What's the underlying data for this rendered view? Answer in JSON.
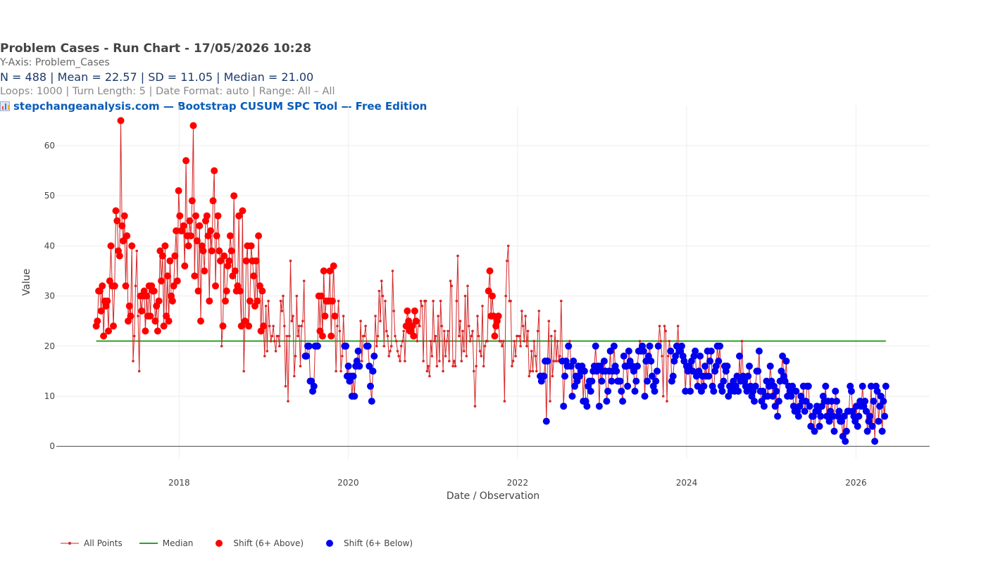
{
  "header": {
    "title": "Problem Cases - Run Chart - 17/05/2026 10:28",
    "yaxis_line": "Y-Axis: Problem_Cases",
    "stats_line": "N = 488  |  Mean = 22.57  |  SD = 11.05  |  Median = 21.00",
    "meta_line": "Loops: 1000  |  Turn Length: 5  |  Date Format: auto  |  Range: All – All",
    "link_text": "stepchangeanalysis.com — Bootstrap CUSUM SPC Tool — Free Edition",
    "link_icon": "bar-chart-icon"
  },
  "colors": {
    "line": "#d62728",
    "median": "#2ca02c",
    "shift_above": "#ff0000",
    "shift_below": "#0000ee"
  },
  "chart_data": {
    "type": "line",
    "xlabel": "Date / Observation",
    "ylabel": "Value",
    "xlim": [
      "2016-07-20",
      "2026-11-15"
    ],
    "ylim": [
      -2.5,
      68
    ],
    "x_ticks": [
      "2018",
      "2020",
      "2022",
      "2024",
      "2026"
    ],
    "y_ticks": [
      0,
      10,
      20,
      30,
      40,
      50,
      60
    ],
    "median": 21.0,
    "median_range": [
      "2017-01-08",
      "2026-05-10"
    ],
    "grid": true,
    "legend_position": "bottom-left",
    "legend": [
      "All Points",
      "Median",
      "Shift (6+ Above)",
      "Shift (6+ Below)"
    ],
    "series": [
      {
        "name": "All Points",
        "kind": "line+markers",
        "y": [
          24,
          25,
          31,
          31,
          27,
          32,
          22,
          29,
          28,
          29,
          23,
          33,
          40,
          32,
          24,
          32,
          47,
          45,
          39,
          38,
          65,
          44,
          41,
          46,
          32,
          42,
          25,
          28,
          26,
          40,
          17,
          22,
          32,
          39,
          26,
          15,
          30,
          27,
          30,
          31,
          23,
          30,
          26,
          32,
          26,
          32,
          31,
          31,
          25,
          28,
          23,
          29,
          39,
          33,
          38,
          24,
          40,
          26,
          34,
          25,
          37,
          30,
          29,
          32,
          38,
          43,
          33,
          51,
          46,
          43,
          43,
          44,
          36,
          57,
          42,
          40,
          45,
          42,
          49,
          64,
          34,
          46,
          41,
          31,
          44,
          25,
          40,
          39,
          35,
          45,
          46,
          42,
          29,
          43,
          39,
          49,
          55,
          32,
          42,
          46,
          39,
          37,
          20,
          24,
          38,
          29,
          31,
          36,
          37,
          42,
          39,
          34,
          50,
          35,
          31,
          32,
          46,
          31,
          24,
          47,
          15,
          25,
          37,
          40,
          24,
          29,
          40,
          37,
          34,
          28,
          37,
          29,
          42,
          32,
          23,
          31,
          24,
          18,
          28,
          19,
          29,
          24,
          21,
          22,
          24,
          21,
          19,
          22,
          22,
          20,
          29,
          27,
          30,
          24,
          12,
          22,
          9,
          22,
          37,
          25,
          26,
          14,
          18,
          30,
          22,
          24,
          16,
          24,
          25,
          33,
          18,
          18,
          20,
          20,
          13,
          13,
          11,
          12,
          20,
          20,
          20,
          30,
          23,
          30,
          22,
          35,
          26,
          29,
          29,
          29,
          35,
          22,
          29,
          36,
          26,
          15,
          24,
          29,
          23,
          15,
          18,
          26,
          20,
          20,
          14,
          16,
          13,
          14,
          10,
          14,
          10,
          16,
          17,
          19,
          16,
          25,
          17,
          22,
          22,
          24,
          20,
          20,
          16,
          12,
          9,
          15,
          18,
          26,
          20,
          22,
          31,
          25,
          33,
          30,
          20,
          29,
          23,
          22,
          18,
          19,
          20,
          35,
          27,
          22,
          21,
          19,
          18,
          17,
          20,
          21,
          23,
          17,
          24,
          27,
          25,
          23,
          23,
          24,
          22,
          27,
          25,
          21,
          25,
          24,
          29,
          28,
          17,
          29,
          29,
          15,
          16,
          14,
          21,
          18,
          29,
          21,
          22,
          16,
          26,
          17,
          29,
          24,
          15,
          23,
          18,
          21,
          23,
          17,
          33,
          32,
          16,
          17,
          16,
          29,
          38,
          22,
          25,
          17,
          23,
          19,
          30,
          18,
          32,
          24,
          21,
          22,
          23,
          15,
          8,
          16,
          26,
          22,
          19,
          18,
          28,
          16,
          20,
          21,
          21,
          31,
          35,
          26,
          30,
          26,
          22,
          24,
          25,
          26,
          21,
          21,
          20,
          21,
          9,
          30,
          37,
          40,
          29,
          29,
          16,
          17,
          21,
          18,
          22,
          22,
          22,
          20,
          27,
          24,
          21,
          26,
          20,
          23,
          14,
          15,
          19,
          15,
          21,
          18,
          15,
          23,
          27,
          14,
          13,
          14,
          14,
          17,
          5,
          17,
          25,
          9,
          22,
          14,
          17,
          23,
          17,
          21,
          17,
          18,
          29,
          17,
          8,
          14,
          17,
          16,
          20,
          21,
          16,
          10,
          17,
          12,
          14,
          13,
          16,
          14,
          15,
          16,
          9,
          15,
          9,
          8,
          12,
          13,
          11,
          13,
          15,
          16,
          20,
          15,
          16,
          8,
          16,
          13,
          15,
          17,
          15,
          9,
          11,
          15,
          19,
          13,
          15,
          20,
          16,
          15,
          13,
          13,
          13,
          11,
          9,
          18,
          16,
          16,
          12,
          19,
          17,
          16,
          16,
          15,
          11,
          13,
          16,
          19,
          21,
          19,
          20,
          19,
          10,
          17,
          13,
          18,
          20,
          17,
          14,
          12,
          11,
          13,
          15,
          20,
          24,
          21,
          18,
          10,
          24,
          23,
          9,
          18,
          21,
          19,
          13,
          14,
          17,
          18,
          20,
          24,
          19,
          19,
          20,
          18,
          17,
          11,
          16,
          15,
          16,
          11,
          17,
          15,
          18,
          19,
          14,
          12,
          15,
          18,
          11,
          14,
          12,
          16,
          14,
          19,
          14,
          17,
          19,
          12,
          11,
          15,
          16,
          20,
          17,
          20,
          12,
          11,
          13,
          16,
          15,
          16,
          10,
          12,
          11,
          12,
          13,
          11,
          12,
          14,
          11,
          18,
          13,
          21,
          14,
          13,
          12,
          11,
          14,
          16,
          12,
          10,
          11,
          9,
          12,
          15,
          15,
          19,
          11,
          9,
          11,
          8,
          10,
          13,
          10,
          12,
          16,
          13,
          10,
          12,
          8,
          11,
          6,
          9,
          13,
          15,
          18,
          14,
          13,
          17,
          10,
          12,
          11,
          10,
          12,
          8,
          7,
          11,
          7,
          6,
          8,
          10,
          9,
          12,
          7,
          9,
          12,
          12,
          8,
          4,
          6,
          6,
          3,
          7,
          8,
          7,
          4,
          6,
          8,
          10,
          9,
          12,
          6,
          9,
          5,
          7,
          9,
          6,
          3,
          11,
          9,
          6,
          7,
          5,
          5,
          2,
          6,
          1,
          3,
          7,
          7,
          12,
          11,
          7,
          6,
          5,
          8,
          4,
          6,
          9,
          8,
          12,
          8,
          9,
          7,
          3,
          5,
          6,
          12,
          4,
          9,
          1,
          12,
          11,
          5,
          8,
          10,
          3,
          9,
          6,
          12
        ]
      },
      {
        "name": "Median",
        "kind": "line"
      },
      {
        "name": "Shift (6+ Above)",
        "kind": "markers",
        "y": [
          24,
          25,
          31,
          31,
          27,
          32,
          22,
          29,
          28,
          29,
          23,
          33,
          40,
          32,
          24,
          32,
          47,
          45,
          39,
          38,
          65,
          44,
          41,
          46,
          32,
          42,
          25,
          28,
          26,
          40,
          30,
          27,
          30,
          31,
          23,
          30,
          26,
          32,
          26,
          32,
          31,
          31,
          25,
          28,
          23,
          29,
          39,
          33,
          38,
          24,
          40,
          26,
          34,
          25,
          37,
          30,
          29,
          32,
          38,
          43,
          33,
          51,
          46,
          43,
          43,
          44,
          36,
          57,
          42,
          40,
          45,
          42,
          49,
          64,
          34,
          46,
          41,
          31,
          44,
          25,
          40,
          39,
          35,
          45,
          46,
          42,
          29,
          43,
          39,
          49,
          55,
          32,
          42,
          46,
          39,
          37,
          24,
          38,
          29,
          31,
          36,
          37,
          42,
          39,
          34,
          50,
          35,
          31,
          32,
          46,
          31,
          24,
          47,
          25,
          37,
          40,
          24,
          29,
          40,
          37,
          34,
          28,
          37,
          29,
          42,
          32,
          23,
          31,
          24,
          30,
          30,
          23,
          22,
          35,
          26,
          29,
          29,
          29,
          35,
          22,
          36,
          26,
          23,
          23,
          27,
          25,
          24,
          22,
          27,
          25,
          24
        ]
      },
      {
        "name": "Shift (6+ Below)",
        "kind": "markers",
        "y": [
          18,
          18,
          20,
          13,
          13,
          11,
          12,
          20,
          20,
          20,
          14,
          16,
          13,
          14,
          10,
          16,
          14,
          10,
          16,
          17,
          19,
          20,
          13,
          14,
          14,
          5,
          17,
          9,
          14,
          18,
          14,
          17,
          16,
          16,
          17,
          16,
          8,
          11,
          10,
          9,
          12,
          13,
          8,
          8,
          11,
          13,
          15,
          20,
          20,
          16,
          15,
          15,
          17,
          15,
          11,
          18,
          16,
          10,
          13,
          17,
          11,
          10,
          15,
          19,
          17,
          12,
          16,
          14,
          12,
          12,
          11,
          20,
          16,
          19,
          20,
          18,
          12,
          13,
          17,
          15,
          16,
          16,
          19,
          13,
          15,
          15,
          10,
          9,
          20,
          17,
          16,
          7,
          12,
          11,
          15,
          10,
          12,
          18,
          19,
          20,
          16,
          10,
          15,
          16,
          18,
          11,
          15,
          12,
          17,
          13,
          14,
          13,
          12,
          7,
          6,
          9,
          11,
          15,
          12,
          14,
          16,
          11,
          10,
          8,
          12,
          13,
          15,
          19,
          11,
          14,
          10,
          11,
          9,
          12,
          8,
          11,
          8,
          10,
          13,
          19,
          9,
          10,
          12,
          12,
          6,
          11,
          7,
          9,
          11,
          12,
          10,
          6,
          20,
          8,
          7,
          11,
          12,
          2,
          7,
          9,
          11,
          10,
          4,
          8,
          6,
          2,
          3,
          7,
          8,
          5,
          6,
          4,
          9,
          12,
          7,
          11,
          6,
          3,
          9,
          1,
          5,
          7,
          12,
          8
        ]
      }
    ]
  }
}
